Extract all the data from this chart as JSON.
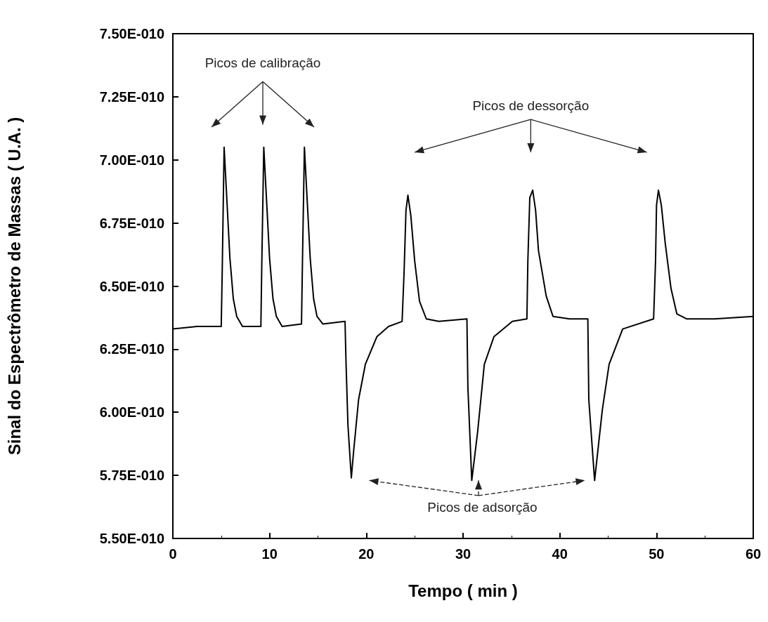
{
  "chart_data": {
    "type": "line",
    "xlabel": "Tempo ( min )",
    "ylabel": "Sinal do Espectrômetro de Massas ( U.A. )",
    "annotations": [
      "Picos de calibração",
      "Picos de dessorção",
      "Picos de adsorção"
    ],
    "xlim": [
      0,
      60
    ],
    "xticks": [
      0,
      10,
      20,
      30,
      40,
      50,
      60
    ],
    "ylim": [
      5.5e-10,
      7.5e-10
    ],
    "yticks": [
      {
        "value": 5.5e-10,
        "label": "5.50E-010"
      },
      {
        "value": 5.75e-10,
        "label": "5.75E-010"
      },
      {
        "value": 6e-10,
        "label": "6.00E-010"
      },
      {
        "value": 6.25e-10,
        "label": "6.25E-010"
      },
      {
        "value": 6.5e-10,
        "label": "6.50E-010"
      },
      {
        "value": 6.75e-10,
        "label": "6.75E-010"
      },
      {
        "value": 7e-10,
        "label": "7.00E-010"
      },
      {
        "value": 7.25e-10,
        "label": "7.25E-010"
      },
      {
        "value": 7.5e-10,
        "label": "7.50E-010"
      }
    ],
    "grid": false,
    "marker": "none",
    "line_style": "solid",
    "series": [
      {
        "color": "#000000",
        "x": [
          0,
          2.5,
          5.0,
          5.1,
          5.3,
          5.6,
          5.9,
          6.25,
          6.6,
          7.2,
          9.1,
          9.2,
          9.4,
          9.7,
          10.0,
          10.35,
          10.7,
          11.3,
          13.3,
          13.4,
          13.6,
          13.9,
          14.2,
          14.55,
          14.9,
          15.5,
          17.8,
          17.9,
          18.1,
          18.45,
          18.7,
          19.2,
          19.9,
          21.1,
          22.3,
          23.7,
          23.9,
          24.1,
          24.3,
          24.6,
          25.0,
          25.5,
          26.2,
          27.5,
          30.4,
          30.5,
          30.9,
          31.5,
          32.2,
          33.2,
          35.1,
          36.6,
          36.7,
          36.9,
          37.2,
          37.5,
          37.8,
          38.6,
          39.3,
          41.0,
          42.9,
          43.0,
          43.6,
          44.4,
          45.1,
          46.5,
          49.7,
          49.9,
          50.0,
          50.2,
          50.5,
          50.9,
          51.5,
          52.1,
          53.1,
          56.0,
          60
        ],
        "values": [
          6.33e-10,
          6.34e-10,
          6.34e-10,
          6.55e-10,
          7.05e-10,
          6.83e-10,
          6.61e-10,
          6.45e-10,
          6.38e-10,
          6.34e-10,
          6.34e-10,
          6.6e-10,
          7.05e-10,
          6.83e-10,
          6.61e-10,
          6.45e-10,
          6.38e-10,
          6.34e-10,
          6.35e-10,
          6.6e-10,
          7.05e-10,
          6.83e-10,
          6.61e-10,
          6.45e-10,
          6.38e-10,
          6.35e-10,
          6.36e-10,
          6.2e-10,
          5.95e-10,
          5.74e-10,
          5.85e-10,
          6.05e-10,
          6.19e-10,
          6.3e-10,
          6.34e-10,
          6.36e-10,
          6.55e-10,
          6.8e-10,
          6.86e-10,
          6.78e-10,
          6.6e-10,
          6.44e-10,
          6.37e-10,
          6.36e-10,
          6.37e-10,
          6.1e-10,
          5.73e-10,
          5.92e-10,
          6.19e-10,
          6.3e-10,
          6.36e-10,
          6.37e-10,
          6.6e-10,
          6.85e-10,
          6.88e-10,
          6.8e-10,
          6.64e-10,
          6.46e-10,
          6.38e-10,
          6.37e-10,
          6.37e-10,
          6.05e-10,
          5.73e-10,
          6.01e-10,
          6.19e-10,
          6.33e-10,
          6.37e-10,
          6.6e-10,
          6.82e-10,
          6.88e-10,
          6.82e-10,
          6.67e-10,
          6.49e-10,
          6.39e-10,
          6.37e-10,
          6.37e-10,
          6.38e-10
        ]
      }
    ]
  }
}
